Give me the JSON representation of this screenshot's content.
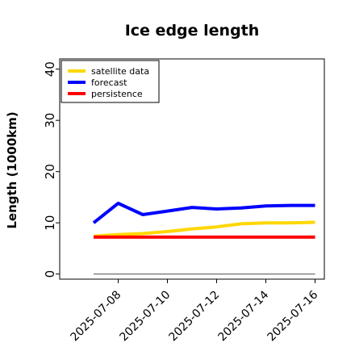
{
  "chart_data": {
    "type": "line",
    "title": "Ice edge length",
    "xlabel": "",
    "ylabel": "Length (1000km)",
    "ylim": [
      -1,
      42
    ],
    "yticks": [
      "0",
      "10",
      "20",
      "30",
      "40"
    ],
    "x": [
      "2025-07-07",
      "2025-07-08",
      "2025-07-09",
      "2025-07-10",
      "2025-07-11",
      "2025-07-12",
      "2025-07-13",
      "2025-07-14",
      "2025-07-15",
      "2025-07-16"
    ],
    "xticks": [
      {
        "label": "2025-07-08",
        "color": "#228b22"
      },
      {
        "label": "2025-07-10",
        "color": "#000000"
      },
      {
        "label": "2025-07-12",
        "color": "#000000"
      },
      {
        "label": "2025-07-14",
        "color": "#000000"
      },
      {
        "label": "2025-07-16",
        "color": "#000000"
      }
    ],
    "series": [
      {
        "name": "satellite data",
        "color": "#ffd700",
        "values": [
          7.4,
          7.7,
          7.9,
          8.3,
          8.8,
          9.2,
          9.8,
          10.0,
          10.0,
          10.1
        ]
      },
      {
        "name": "forecast",
        "color": "#0000ff",
        "values": [
          10.0,
          13.8,
          11.6,
          12.3,
          13.0,
          12.7,
          12.9,
          13.3,
          13.4,
          13.4
        ]
      },
      {
        "name": "persistence",
        "color": "#ff0000",
        "values": [
          7.2,
          7.2,
          7.2,
          7.2,
          7.2,
          7.2,
          7.2,
          7.2,
          7.2,
          7.2
        ]
      }
    ],
    "reference_line": {
      "value": 0,
      "color": "#808080"
    },
    "legend": "top-left",
    "grid": false
  }
}
